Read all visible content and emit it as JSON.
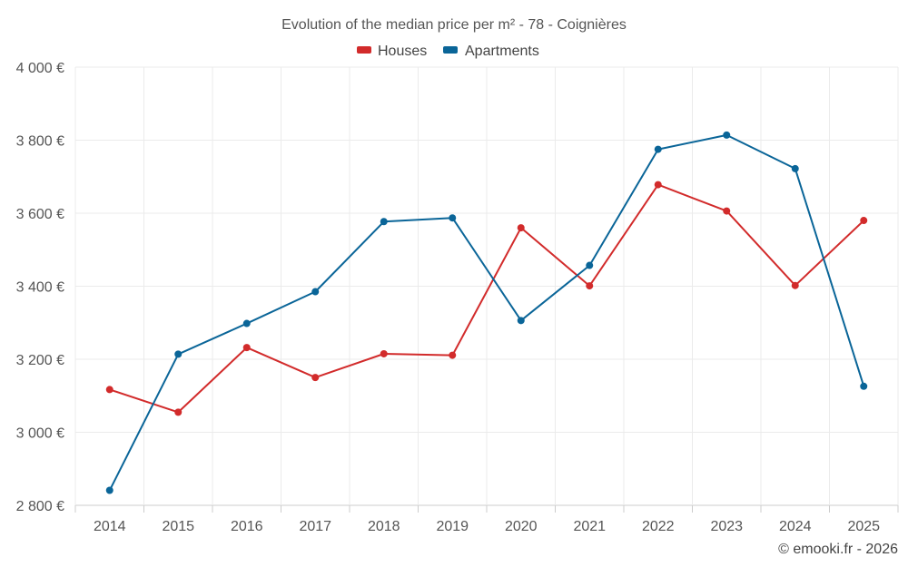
{
  "chart_data": {
    "type": "line",
    "title": "Evolution of the median price per m² - 78 - Coignières",
    "categories": [
      "2014",
      "2015",
      "2016",
      "2017",
      "2018",
      "2019",
      "2020",
      "2021",
      "2022",
      "2023",
      "2024",
      "2025"
    ],
    "y_ticks": [
      "2 800 €",
      "3 000 €",
      "3 200 €",
      "3 400 €",
      "3 600 €",
      "3 800 €",
      "4 000 €"
    ],
    "ylim": [
      2800,
      4000
    ],
    "y_tick_step": 200,
    "grid": true,
    "legend_position": "top-center",
    "series": [
      {
        "name": "Houses",
        "color": "#d22b2b",
        "values": [
          3117,
          3055,
          3232,
          3150,
          3215,
          3211,
          3560,
          3401,
          3678,
          3606,
          3402,
          3580
        ]
      },
      {
        "name": "Apartments",
        "color": "#0a6598",
        "values": [
          2841,
          3214,
          3298,
          3385,
          3577,
          3587,
          3306,
          3457,
          3775,
          3814,
          3722,
          3126
        ]
      }
    ]
  },
  "credit": "© emooki.fr - 2026"
}
